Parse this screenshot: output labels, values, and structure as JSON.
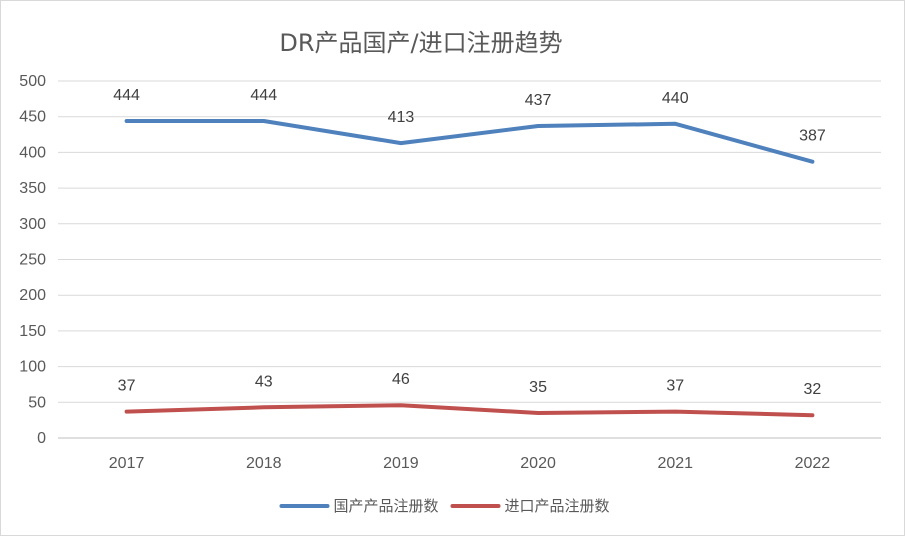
{
  "chart_data": {
    "type": "line",
    "title": "DR产品国产/进口注册趋势",
    "xlabel": "",
    "ylabel": "",
    "categories": [
      "2017",
      "2018",
      "2019",
      "2020",
      "2021",
      "2022"
    ],
    "ylim": [
      0,
      500
    ],
    "yticks": [
      0,
      50,
      100,
      150,
      200,
      250,
      300,
      350,
      400,
      450,
      500
    ],
    "grid": true,
    "legend_position": "bottom",
    "series": [
      {
        "name": "国产产品注册数",
        "color": "#4f81bd",
        "values": [
          444,
          444,
          413,
          437,
          440,
          387
        ]
      },
      {
        "name": "进口产品注册数",
        "color": "#c0504d",
        "values": [
          37,
          43,
          46,
          35,
          37,
          32
        ]
      }
    ]
  }
}
